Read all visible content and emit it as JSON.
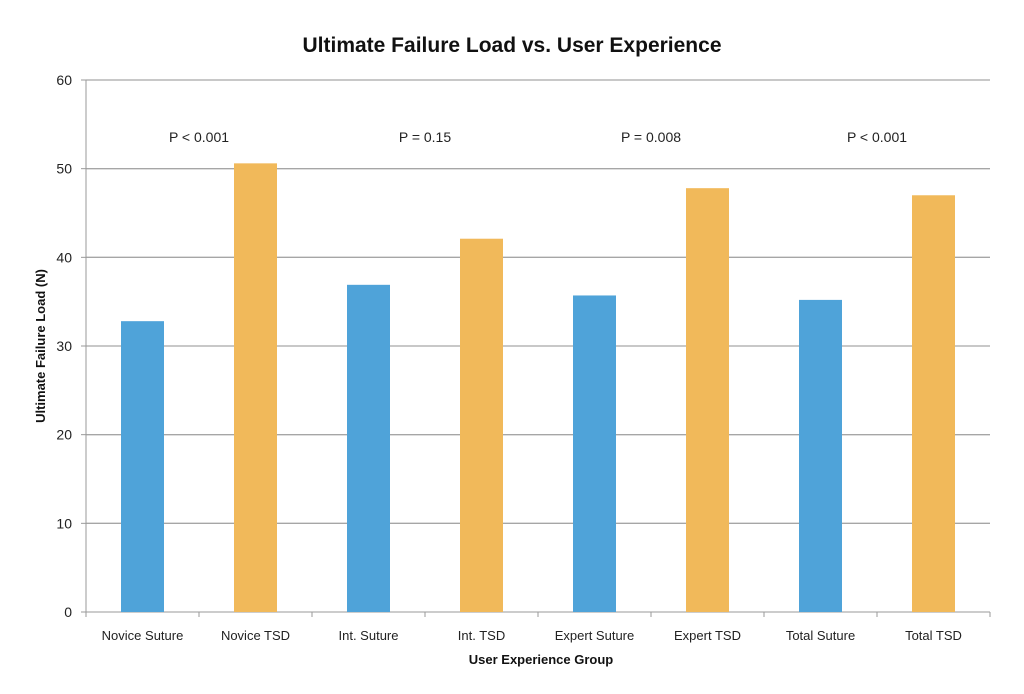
{
  "chart_data": {
    "type": "bar",
    "title": "Ultimate Failure Load vs. User Experience",
    "xlabel": "User Experience Group",
    "ylabel": "Ultimate Failure Load (N)",
    "ylim": [
      0,
      60
    ],
    "yticks": [
      0,
      10,
      20,
      30,
      40,
      50,
      60
    ],
    "grid": true,
    "categories": [
      "Novice Suture",
      "Novice TSD",
      "Int. Suture",
      "Int. TSD",
      "Expert Suture",
      "Expert TSD",
      "Total Suture",
      "Total TSD"
    ],
    "values": [
      32.8,
      50.6,
      36.9,
      42.1,
      35.7,
      47.8,
      35.2,
      47.0
    ],
    "colors": [
      "#4fa3d9",
      "#f1b95a",
      "#4fa3d9",
      "#f1b95a",
      "#4fa3d9",
      "#f1b95a",
      "#4fa3d9",
      "#f1b95a"
    ],
    "annotations": [
      {
        "text": "P < 0.001",
        "pair": [
          0,
          1
        ]
      },
      {
        "text": "P = 0.15",
        "pair": [
          2,
          3
        ]
      },
      {
        "text": "P = 0.008",
        "pair": [
          4,
          5
        ]
      },
      {
        "text": "P < 0.001",
        "pair": [
          6,
          7
        ]
      }
    ],
    "gridline_color": "#a6a6a6",
    "axis_color": "#9a9a9a"
  }
}
